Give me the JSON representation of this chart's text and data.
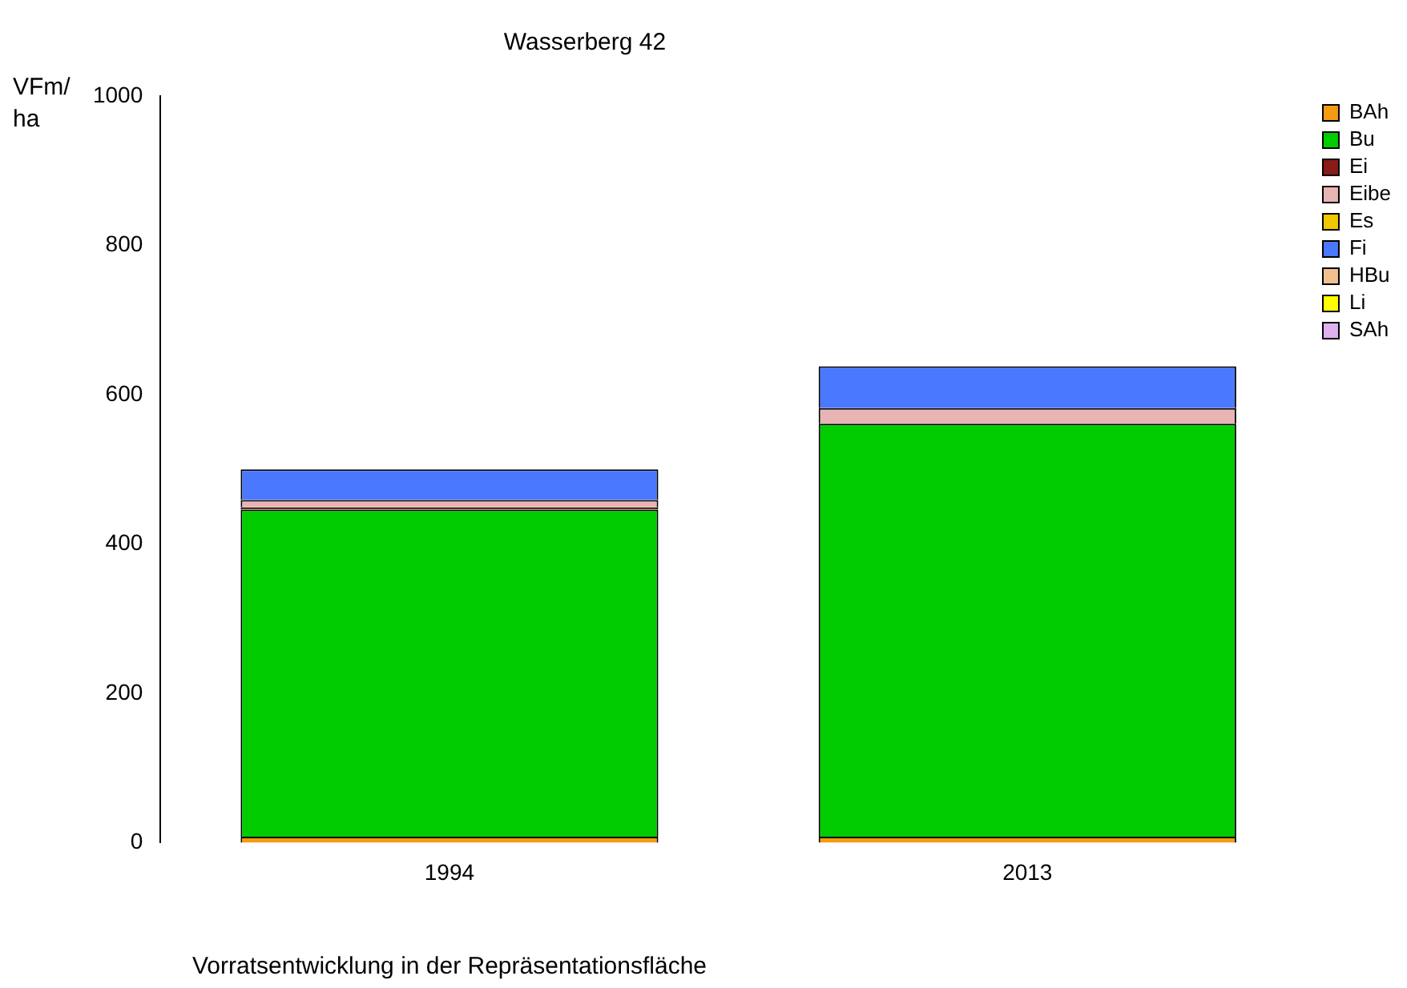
{
  "chart_data": {
    "type": "bar",
    "title": "Wasserberg 42",
    "xlabel": "Vorratsentwicklung in der Repräsentationsfläche",
    "ylabel": "VFm/ha",
    "categories": [
      "1994",
      "2013"
    ],
    "stacked": true,
    "ylim": [
      0,
      1000
    ],
    "yticks": [
      0,
      200,
      400,
      600,
      800,
      1000
    ],
    "grid": false,
    "legend": "top right",
    "series": [
      {
        "name": "BAh",
        "color": "#f39c12",
        "values": [
          8,
          8
        ]
      },
      {
        "name": "Bu",
        "color": "#00cc00",
        "values": [
          438,
          553
        ]
      },
      {
        "name": "Ei",
        "color": "#8b1a1a",
        "values": [
          3,
          0
        ]
      },
      {
        "name": "Eibe",
        "color": "#e8b4b4",
        "values": [
          10,
          21
        ]
      },
      {
        "name": "Es",
        "color": "#f0c800",
        "values": [
          0,
          0
        ]
      },
      {
        "name": "Fi",
        "color": "#4a78ff",
        "values": [
          41,
          56
        ]
      },
      {
        "name": "HBu",
        "color": "#f0c090",
        "values": [
          0,
          0
        ]
      },
      {
        "name": "Li",
        "color": "#ffff00",
        "values": [
          0,
          0
        ]
      },
      {
        "name": "SAh",
        "color": "#e0b0f0",
        "values": [
          0,
          0
        ]
      }
    ]
  }
}
